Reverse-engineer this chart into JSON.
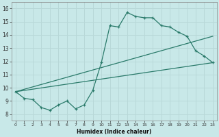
{
  "xlabel": "Humidex (Indice chaleur)",
  "ylabel": "",
  "background_color": "#c8e8e8",
  "grid_color": "#aed4d4",
  "line_color": "#2a7a6a",
  "xlim": [
    -0.5,
    23.5
  ],
  "ylim": [
    7.5,
    16.5
  ],
  "xticks": [
    0,
    1,
    2,
    3,
    4,
    5,
    6,
    7,
    8,
    9,
    10,
    11,
    12,
    13,
    14,
    15,
    16,
    17,
    18,
    19,
    20,
    21,
    22,
    23
  ],
  "yticks": [
    8,
    9,
    10,
    11,
    12,
    13,
    14,
    15,
    16
  ],
  "line1_x": [
    0,
    1,
    2,
    3,
    4,
    5,
    6,
    7,
    8,
    9,
    10,
    11,
    12,
    13,
    14,
    15,
    16,
    17,
    18,
    19,
    20,
    21,
    22,
    23
  ],
  "line1_y": [
    9.7,
    9.2,
    9.1,
    8.5,
    8.3,
    8.7,
    9.0,
    8.4,
    8.7,
    9.8,
    11.9,
    14.7,
    14.6,
    15.7,
    15.4,
    15.3,
    15.3,
    14.7,
    14.6,
    14.2,
    13.9,
    12.8,
    12.4,
    11.9
  ],
  "line2_x": [
    0,
    23
  ],
  "line2_y": [
    9.7,
    11.9
  ],
  "line3_x": [
    0,
    23
  ],
  "line3_y": [
    9.7,
    13.9
  ]
}
